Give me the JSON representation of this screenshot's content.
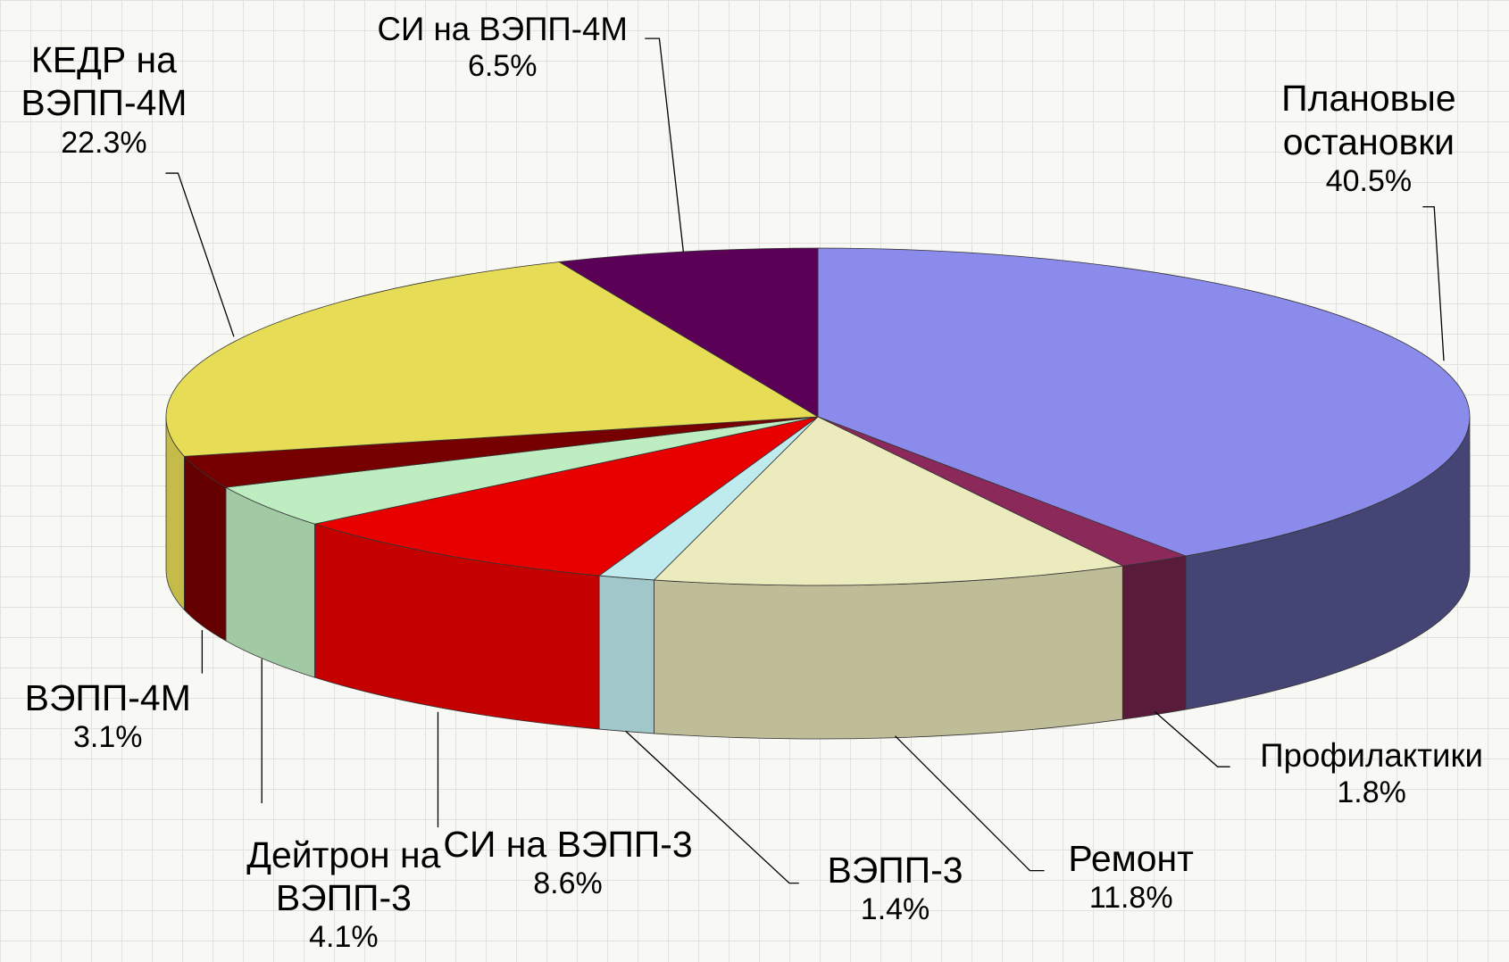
{
  "chart_data": {
    "type": "pie3d",
    "categories": [
      "Плановые остановки",
      "Профилактики",
      "Ремонт",
      "ВЭПП-3",
      "СИ на ВЭПП-3",
      "Дейтрон на ВЭПП-3",
      "ВЭПП-4М",
      "КЕДР на ВЭПП-4М",
      "СИ на ВЭПП-4М"
    ],
    "values": [
      40.5,
      1.8,
      11.8,
      1.4,
      8.6,
      4.1,
      3.1,
      22.3,
      6.5
    ],
    "value_labels": [
      "40.5%",
      "1.8%",
      "11.8%",
      "1.4%",
      "8.6%",
      "4.1%",
      "3.1%",
      "22.3%",
      "6.5%"
    ],
    "colors": [
      "#8b8beb",
      "#8b2a5a",
      "#ecebbd",
      "#bfeaee",
      "#e80000",
      "#bdedc1",
      "#760000",
      "#e6dc55",
      "#5b0057"
    ]
  }
}
